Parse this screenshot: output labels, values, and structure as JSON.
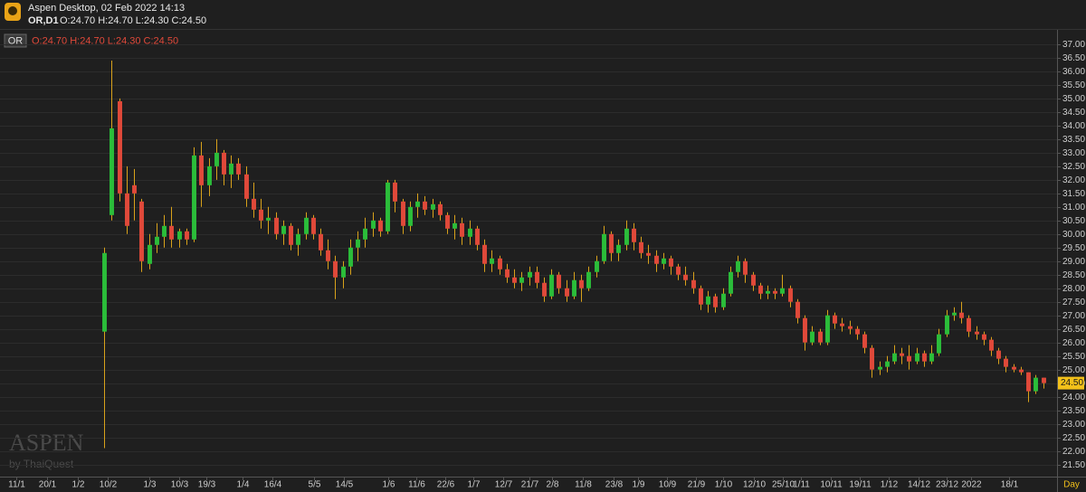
{
  "header": {
    "app": "Aspen Desktop, 02 Feb 2022 14:13",
    "symbol": "OR,D1",
    "ohlc": "O:24.70 H:24.70 L:24.30 C:24.50"
  },
  "legend": {
    "symbol": "OR",
    "ohlc": "O:24.70 H:24.70 L:24.30 C:24.50"
  },
  "watermark": {
    "brand": "ASPEN",
    "by": "by ThaiQuest"
  },
  "chart_data": {
    "type": "candlestick",
    "name": "OR",
    "x_label": "Day",
    "up_color": "#2bbd3a",
    "down_color": "#e0493a",
    "wick_color": "#d9a21b",
    "grid": true,
    "open": [
      26.4,
      30.7,
      34.9,
      31.5,
      31.8,
      31.2,
      28.9,
      29.6,
      29.9,
      30.3,
      29.8,
      30.1,
      29.8,
      32.9,
      31.8,
      32.5,
      33.0,
      32.2,
      32.6,
      32.2,
      31.3,
      30.9,
      30.5,
      30.6,
      30.0,
      30.3,
      29.6,
      30.0,
      30.6,
      30.0,
      29.4,
      29.0,
      28.4,
      28.8,
      29.5,
      29.8,
      30.2,
      30.5,
      30.1,
      31.9,
      31.2,
      30.3,
      31.0,
      31.2,
      30.9,
      31.1,
      30.7,
      30.2,
      30.4,
      29.9,
      30.2,
      29.6,
      28.9,
      29.1,
      28.7,
      28.4,
      28.2,
      28.4,
      28.6,
      28.2,
      27.7,
      28.5,
      28.0,
      27.7,
      28.3,
      28.0,
      28.6,
      29.0,
      30.0,
      29.3,
      29.6,
      30.2,
      29.7,
      29.3,
      29.2,
      28.9,
      29.1,
      28.8,
      28.5,
      28.3,
      28.0,
      27.4,
      27.7,
      27.3,
      27.8,
      28.6,
      29.0,
      28.5,
      28.1,
      27.8,
      27.9,
      27.8,
      28.0,
      27.5,
      26.9,
      26.0,
      26.4,
      26.0,
      27.0,
      26.7,
      26.6,
      26.5,
      26.3,
      25.8,
      25.0,
      25.1,
      25.3,
      25.6,
      25.5,
      25.3,
      25.6,
      25.3,
      25.6,
      26.3,
      27.0,
      27.1,
      26.9,
      26.4,
      26.3,
      26.1,
      25.7,
      25.4,
      25.1,
      25.0,
      24.9,
      24.2,
      24.7
    ],
    "high": [
      29.5,
      36.4,
      35.0,
      32.5,
      32.4,
      31.3,
      30.0,
      30.4,
      30.7,
      31.0,
      30.2,
      30.2,
      33.2,
      33.4,
      32.8,
      33.5,
      33.1,
      32.9,
      32.8,
      32.5,
      31.9,
      31.3,
      31.0,
      30.8,
      30.5,
      30.4,
      30.2,
      30.8,
      30.7,
      30.2,
      29.8,
      29.2,
      29.0,
      29.8,
      30.1,
      30.6,
      30.8,
      30.6,
      32.0,
      32.0,
      31.3,
      31.2,
      31.5,
      31.4,
      31.3,
      31.2,
      30.8,
      30.7,
      30.6,
      30.5,
      30.3,
      29.8,
      29.4,
      29.2,
      28.9,
      28.7,
      28.6,
      28.8,
      28.8,
      28.4,
      28.7,
      28.6,
      28.3,
      28.6,
      28.5,
      28.8,
      29.2,
      30.3,
      30.1,
      29.8,
      30.5,
      30.4,
      29.9,
      29.6,
      29.4,
      29.3,
      29.2,
      28.9,
      28.8,
      28.6,
      28.1,
      27.9,
      27.8,
      28.0,
      28.8,
      29.2,
      29.1,
      28.6,
      28.2,
      28.1,
      28.0,
      28.5,
      28.1,
      27.6,
      27.0,
      26.6,
      26.5,
      27.2,
      27.1,
      26.9,
      26.8,
      26.6,
      26.4,
      25.9,
      25.3,
      25.5,
      25.9,
      25.8,
      25.9,
      25.8,
      25.7,
      25.9,
      26.5,
      27.2,
      27.3,
      27.5,
      27.0,
      26.6,
      26.4,
      26.2,
      25.8,
      25.5,
      25.2,
      25.1,
      24.9,
      24.8,
      24.7
    ],
    "low": [
      22.1,
      30.5,
      31.2,
      30.0,
      30.5,
      28.6,
      28.7,
      29.3,
      29.5,
      29.5,
      29.5,
      29.6,
      29.7,
      31.0,
      31.4,
      32.0,
      31.8,
      31.7,
      32.0,
      31.0,
      30.6,
      30.2,
      30.0,
      29.8,
      29.6,
      29.4,
      29.2,
      29.8,
      29.8,
      29.2,
      28.7,
      27.6,
      28.0,
      28.5,
      29.0,
      29.5,
      29.9,
      29.9,
      30.0,
      30.8,
      30.0,
      30.1,
      30.6,
      30.7,
      30.6,
      30.5,
      30.0,
      29.8,
      29.6,
      29.6,
      29.4,
      28.6,
      28.6,
      28.5,
      28.2,
      28.0,
      27.9,
      28.1,
      28.0,
      27.5,
      27.6,
      27.8,
      27.5,
      27.6,
      27.5,
      27.9,
      28.4,
      28.9,
      29.0,
      29.0,
      29.4,
      29.4,
      29.1,
      28.9,
      28.6,
      28.7,
      28.5,
      28.3,
      28.1,
      27.8,
      27.2,
      27.1,
      27.1,
      27.2,
      27.7,
      28.4,
      28.2,
      27.9,
      27.6,
      27.6,
      27.6,
      27.7,
      27.3,
      26.7,
      25.7,
      25.9,
      25.9,
      25.9,
      26.5,
      26.4,
      26.3,
      26.1,
      25.6,
      24.7,
      24.8,
      24.9,
      25.2,
      25.2,
      25.0,
      25.2,
      25.1,
      25.2,
      25.5,
      26.2,
      26.8,
      26.7,
      26.2,
      26.1,
      25.9,
      25.5,
      25.2,
      24.9,
      24.9,
      24.8,
      23.8,
      24.1,
      24.3
    ],
    "close": [
      29.3,
      33.9,
      31.5,
      30.3,
      31.5,
      29.0,
      29.6,
      29.9,
      30.3,
      29.8,
      30.1,
      29.8,
      32.9,
      31.8,
      32.5,
      33.0,
      32.2,
      32.6,
      32.2,
      31.3,
      30.9,
      30.5,
      30.6,
      30.0,
      30.3,
      29.6,
      30.0,
      30.6,
      30.0,
      29.4,
      29.0,
      28.4,
      28.8,
      29.5,
      29.8,
      30.2,
      30.5,
      30.1,
      31.9,
      31.2,
      30.3,
      31.0,
      31.2,
      30.9,
      31.1,
      30.7,
      30.2,
      30.4,
      29.9,
      30.2,
      29.6,
      28.9,
      29.1,
      28.7,
      28.4,
      28.2,
      28.4,
      28.6,
      28.2,
      27.7,
      28.5,
      28.0,
      27.7,
      28.3,
      28.0,
      28.6,
      29.0,
      30.0,
      29.3,
      29.6,
      30.2,
      29.7,
      29.3,
      29.2,
      28.9,
      29.1,
      28.8,
      28.5,
      28.3,
      28.0,
      27.4,
      27.7,
      27.3,
      27.8,
      28.6,
      29.0,
      28.5,
      28.1,
      27.8,
      27.9,
      27.8,
      28.0,
      27.5,
      26.9,
      26.0,
      26.4,
      26.0,
      27.0,
      26.7,
      26.6,
      26.5,
      26.3,
      25.8,
      25.0,
      25.1,
      25.3,
      25.6,
      25.5,
      25.3,
      25.6,
      25.3,
      25.6,
      26.3,
      27.0,
      27.1,
      26.9,
      26.4,
      26.3,
      26.1,
      25.7,
      25.4,
      25.1,
      25.0,
      24.9,
      24.2,
      24.7,
      24.5
    ],
    "xlim": [
      -14,
      127.5
    ],
    "xticks": [
      {
        "value": -11.8,
        "label": "11/1"
      },
      {
        "value": -7.7,
        "label": "20/1"
      },
      {
        "value": -3.5,
        "label": "1/2"
      },
      {
        "value": 0.5,
        "label": "10/2"
      },
      {
        "value": 6.1,
        "label": "1/3"
      },
      {
        "value": 10.1,
        "label": "10/3"
      },
      {
        "value": 13.7,
        "label": "19/3"
      },
      {
        "value": 18.6,
        "label": "1/4"
      },
      {
        "value": 22.5,
        "label": "16/4"
      },
      {
        "value": 28.2,
        "label": "5/5"
      },
      {
        "value": 32.2,
        "label": "14/5"
      },
      {
        "value": 38.1,
        "label": "1/6"
      },
      {
        "value": 41.9,
        "label": "11/6"
      },
      {
        "value": 45.8,
        "label": "22/6"
      },
      {
        "value": 49.5,
        "label": "1/7"
      },
      {
        "value": 53.5,
        "label": "12/7"
      },
      {
        "value": 57.1,
        "label": "21/7"
      },
      {
        "value": 60.1,
        "label": "2/8"
      },
      {
        "value": 64.2,
        "label": "11/8"
      },
      {
        "value": 68.3,
        "label": "23/8"
      },
      {
        "value": 71.6,
        "label": "1/9"
      },
      {
        "value": 75.5,
        "label": "10/9"
      },
      {
        "value": 79.4,
        "label": "21/9"
      },
      {
        "value": 83.1,
        "label": "1/10"
      },
      {
        "value": 87.2,
        "label": "12/10"
      },
      {
        "value": 91.1,
        "label": "25/10"
      },
      {
        "value": 93.5,
        "label": "1/11"
      },
      {
        "value": 97.5,
        "label": "10/11"
      },
      {
        "value": 101.4,
        "label": "19/11"
      },
      {
        "value": 105.3,
        "label": "1/12"
      },
      {
        "value": 109.3,
        "label": "14/12"
      },
      {
        "value": 113.1,
        "label": "23/12"
      },
      {
        "value": 116.3,
        "label": "2022"
      },
      {
        "value": 121.4,
        "label": "18/1"
      }
    ],
    "ylim": [
      21.05,
      37.3
    ],
    "yticks": [
      {
        "value": 21.5,
        "label": "21.50"
      },
      {
        "value": 22,
        "label": "22.00"
      },
      {
        "value": 22.5,
        "label": "22.50"
      },
      {
        "value": 23,
        "label": "23.00"
      },
      {
        "value": 23.5,
        "label": "23.50"
      },
      {
        "value": 24,
        "label": "24.00"
      },
      {
        "value": 24.5,
        "label": "24.50"
      },
      {
        "value": 25,
        "label": "25.00"
      },
      {
        "value": 25.5,
        "label": "25.50"
      },
      {
        "value": 26,
        "label": "26.00"
      },
      {
        "value": 26.5,
        "label": "26.50"
      },
      {
        "value": 27,
        "label": "27.00"
      },
      {
        "value": 27.5,
        "label": "27.50"
      },
      {
        "value": 28,
        "label": "28.00"
      },
      {
        "value": 28.5,
        "label": "28.50"
      },
      {
        "value": 29,
        "label": "29.00"
      },
      {
        "value": 29.5,
        "label": "29.50"
      },
      {
        "value": 30,
        "label": "30.00"
      },
      {
        "value": 30.5,
        "label": "30.50"
      },
      {
        "value": 31,
        "label": "31.00"
      },
      {
        "value": 31.5,
        "label": "31.50"
      },
      {
        "value": 32,
        "label": "32.00"
      },
      {
        "value": 32.5,
        "label": "32.50"
      },
      {
        "value": 33,
        "label": "33.00"
      },
      {
        "value": 33.5,
        "label": "33.50"
      },
      {
        "value": 34,
        "label": "34.00"
      },
      {
        "value": 34.5,
        "label": "34.50"
      },
      {
        "value": 35,
        "label": "35.00"
      },
      {
        "value": 35.5,
        "label": "35.50"
      },
      {
        "value": 36,
        "label": "36.00"
      },
      {
        "value": 36.5,
        "label": "36.50"
      },
      {
        "value": 37,
        "label": "37.00"
      }
    ],
    "last_price": {
      "value": 24.5,
      "label": "24.50"
    }
  }
}
